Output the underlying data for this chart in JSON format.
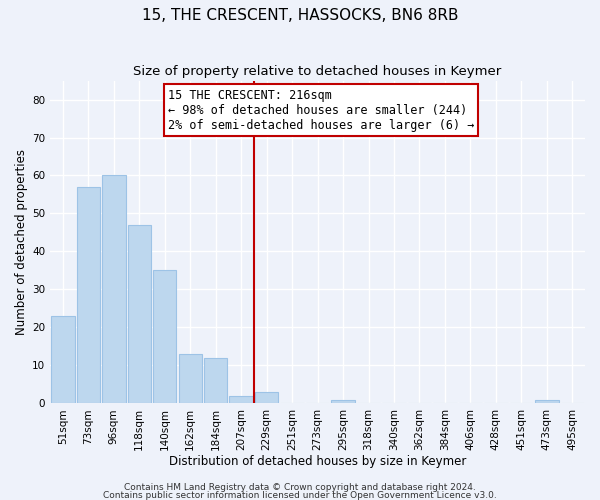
{
  "title": "15, THE CRESCENT, HASSOCKS, BN6 8RB",
  "subtitle": "Size of property relative to detached houses in Keymer",
  "xlabel": "Distribution of detached houses by size in Keymer",
  "ylabel": "Number of detached properties",
  "footer_line1": "Contains HM Land Registry data © Crown copyright and database right 2024.",
  "footer_line2": "Contains public sector information licensed under the Open Government Licence v3.0.",
  "bar_labels": [
    "51sqm",
    "73sqm",
    "96sqm",
    "118sqm",
    "140sqm",
    "162sqm",
    "184sqm",
    "207sqm",
    "229sqm",
    "251sqm",
    "273sqm",
    "295sqm",
    "318sqm",
    "340sqm",
    "362sqm",
    "384sqm",
    "406sqm",
    "428sqm",
    "451sqm",
    "473sqm",
    "495sqm"
  ],
  "bar_values": [
    23,
    57,
    60,
    47,
    35,
    13,
    12,
    2,
    3,
    0,
    0,
    1,
    0,
    0,
    0,
    0,
    0,
    0,
    0,
    1,
    0
  ],
  "bar_color": "#bdd7ee",
  "bar_edgecolor": "#9dc3e6",
  "reference_line_color": "#c00000",
  "annotation_title": "15 THE CRESCENT: 216sqm",
  "annotation_line1": "← 98% of detached houses are smaller (244)",
  "annotation_line2": "2% of semi-detached houses are larger (6) →",
  "ylim": [
    0,
    85
  ],
  "yticks": [
    0,
    10,
    20,
    30,
    40,
    50,
    60,
    70,
    80
  ],
  "background_color": "#eef2fa",
  "grid_color": "#ffffff",
  "title_fontsize": 11,
  "subtitle_fontsize": 9.5,
  "label_fontsize": 8.5,
  "tick_fontsize": 7.5,
  "footer_fontsize": 6.5,
  "annotation_fontsize": 8.5
}
